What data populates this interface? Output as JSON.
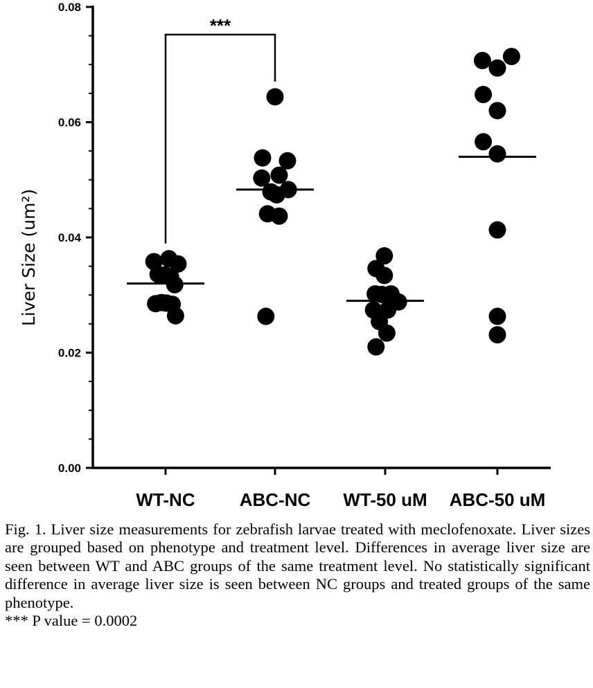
{
  "chart_data": {
    "type": "scatter",
    "ylabel": "Liver Size (um²)",
    "ylim": [
      0,
      0.08
    ],
    "yticks": [
      "0.00",
      "0.02",
      "0.04",
      "0.06",
      "0.08"
    ],
    "categories": [
      "WT-NC",
      "ABC-NC",
      "WT-50 uM",
      "ABC-50 uM"
    ],
    "groups": [
      {
        "name": "WT-NC",
        "means": 0.032,
        "points": [
          {
            "y": 0.0358,
            "j": -0.7
          },
          {
            "y": 0.0363,
            "j": 0.2
          },
          {
            "y": 0.0354,
            "j": 0.75
          },
          {
            "y": 0.0336,
            "j": -0.45
          },
          {
            "y": 0.0335,
            "j": -0.05
          },
          {
            "y": 0.0332,
            "j": 0.3
          },
          {
            "y": 0.0318,
            "j": 0.55
          },
          {
            "y": 0.0285,
            "j": -0.6
          },
          {
            "y": 0.0287,
            "j": -0.25
          },
          {
            "y": 0.0286,
            "j": 0.05
          },
          {
            "y": 0.0284,
            "j": 0.4
          },
          {
            "y": 0.0264,
            "j": 0.6
          }
        ]
      },
      {
        "name": "ABC-NC",
        "means": 0.0483,
        "points": [
          {
            "y": 0.0644,
            "j": 0.0
          },
          {
            "y": 0.0538,
            "j": -0.75
          },
          {
            "y": 0.0533,
            "j": 0.75
          },
          {
            "y": 0.0508,
            "j": 0.25
          },
          {
            "y": 0.0503,
            "j": -0.8
          },
          {
            "y": 0.0483,
            "j": 0.8
          },
          {
            "y": 0.0479,
            "j": -0.25
          },
          {
            "y": 0.0474,
            "j": 0.1
          },
          {
            "y": 0.0441,
            "j": -0.45
          },
          {
            "y": 0.0437,
            "j": 0.25
          },
          {
            "y": 0.0263,
            "j": -0.55
          }
        ]
      },
      {
        "name": "WT-50 uM",
        "means": 0.029,
        "points": [
          {
            "y": 0.0368,
            "j": -0.05
          },
          {
            "y": 0.0346,
            "j": -0.55
          },
          {
            "y": 0.0334,
            "j": -0.05
          },
          {
            "y": 0.0302,
            "j": -0.6
          },
          {
            "y": 0.0301,
            "j": -0.2
          },
          {
            "y": 0.0302,
            "j": 0.35
          },
          {
            "y": 0.0288,
            "j": 0.8
          },
          {
            "y": 0.0274,
            "j": -0.7
          },
          {
            "y": 0.0274,
            "j": 0.15
          },
          {
            "y": 0.0254,
            "j": -0.35
          },
          {
            "y": 0.0234,
            "j": 0.1
          },
          {
            "y": 0.021,
            "j": -0.55
          }
        ]
      },
      {
        "name": "ABC-50 uM",
        "means": 0.054,
        "points": [
          {
            "y": 0.0714,
            "j": 0.85
          },
          {
            "y": 0.0707,
            "j": -0.9
          },
          {
            "y": 0.0694,
            "j": 0.0
          },
          {
            "y": 0.0648,
            "j": -0.85
          },
          {
            "y": 0.062,
            "j": 0.0
          },
          {
            "y": 0.0566,
            "j": -0.85
          },
          {
            "y": 0.0545,
            "j": 0.0
          },
          {
            "y": 0.0413,
            "j": 0.0
          },
          {
            "y": 0.0263,
            "j": 0.0
          },
          {
            "y": 0.0231,
            "j": 0.0
          }
        ]
      }
    ],
    "significance": {
      "from": "WT-NC",
      "to": "ABC-NC",
      "label": "***"
    }
  },
  "caption": {
    "text": "Fig. 1. Liver size measurements for zebrafish larvae treated with meclofenoxate. Liver sizes are grouped based on phenotype and treatment level. Differences in average liver size are seen between WT and ABC groups of the same treatment level. No statistically significant difference in average liver size is seen between NC groups and treated groups of the same phenotype.",
    "note": "*** P value = 0.0002"
  }
}
